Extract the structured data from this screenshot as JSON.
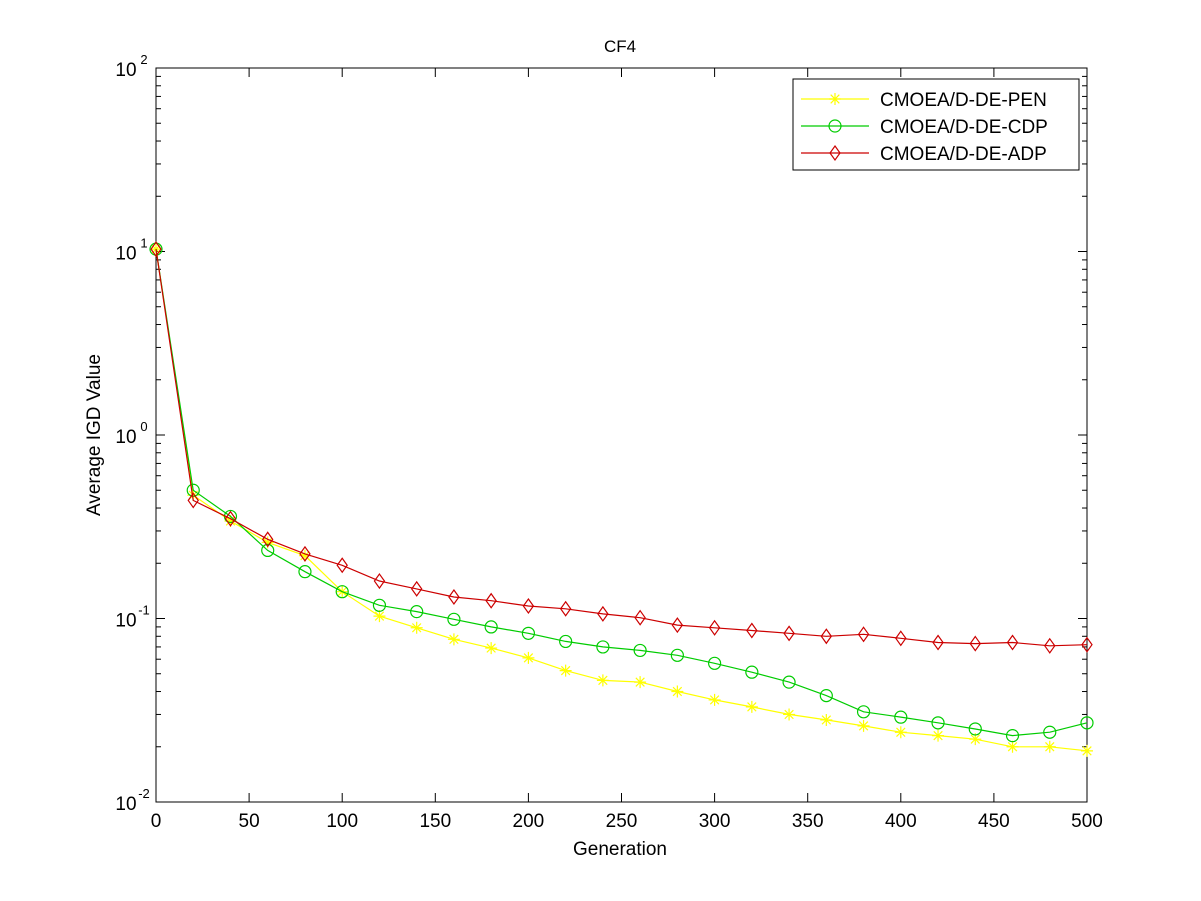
{
  "chart_data": {
    "type": "line",
    "title": "CF4",
    "xlabel": "Generation",
    "ylabel": "Average IGD Value",
    "xlim": [
      0,
      500
    ],
    "ylim": [
      0.01,
      100
    ],
    "yscale": "log",
    "x_ticks": [
      0,
      50,
      100,
      150,
      200,
      250,
      300,
      350,
      400,
      450,
      500
    ],
    "y_ticks": [
      {
        "value": 0.01,
        "base": "10",
        "exp": "-2"
      },
      {
        "value": 0.1,
        "base": "10",
        "exp": "-1"
      },
      {
        "value": 1,
        "base": "10",
        "exp": "0"
      },
      {
        "value": 10,
        "base": "10",
        "exp": "1"
      },
      {
        "value": 100,
        "base": "10",
        "exp": "2"
      }
    ],
    "grid": false,
    "legend_position": "top-right",
    "x": [
      0,
      20,
      40,
      60,
      80,
      100,
      120,
      140,
      160,
      180,
      200,
      220,
      240,
      260,
      280,
      300,
      320,
      340,
      360,
      380,
      400,
      420,
      440,
      460,
      480,
      500
    ],
    "series": [
      {
        "name": "CMOEA/D-DE-PEN",
        "color": "#ffff00",
        "marker": "star",
        "values": [
          10.3,
          0.47,
          0.34,
          0.26,
          0.22,
          0.14,
          0.103,
          0.089,
          0.077,
          0.069,
          0.061,
          0.052,
          0.046,
          0.045,
          0.04,
          0.036,
          0.033,
          0.03,
          0.028,
          0.026,
          0.024,
          0.023,
          0.022,
          0.02,
          0.02,
          0.019
        ]
      },
      {
        "name": "CMOEA/D-DE-CDP",
        "color": "#00cc00",
        "marker": "circle",
        "values": [
          10.3,
          0.5,
          0.36,
          0.235,
          0.18,
          0.14,
          0.118,
          0.109,
          0.099,
          0.09,
          0.083,
          0.075,
          0.07,
          0.067,
          0.063,
          0.057,
          0.051,
          0.045,
          0.038,
          0.031,
          0.029,
          0.027,
          0.025,
          0.023,
          0.024,
          0.027
        ]
      },
      {
        "name": "CMOEA/D-DE-ADP",
        "color": "#cc0000",
        "marker": "diamond",
        "values": [
          10.3,
          0.44,
          0.35,
          0.27,
          0.225,
          0.195,
          0.16,
          0.145,
          0.131,
          0.125,
          0.117,
          0.113,
          0.106,
          0.101,
          0.092,
          0.089,
          0.086,
          0.083,
          0.08,
          0.082,
          0.078,
          0.074,
          0.073,
          0.074,
          0.071,
          0.072
        ]
      }
    ]
  }
}
